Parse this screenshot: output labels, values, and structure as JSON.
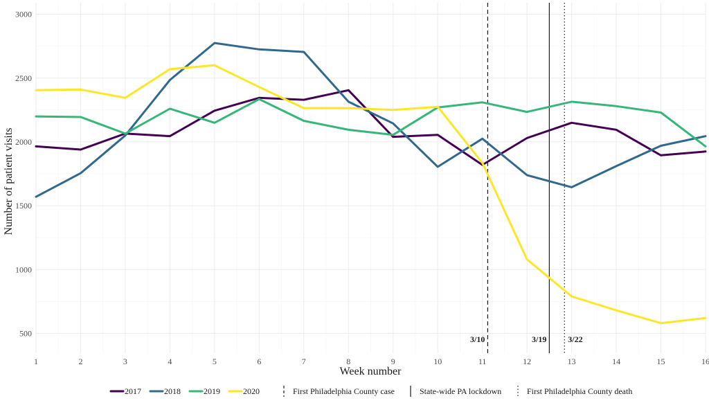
{
  "chart_data": {
    "type": "line",
    "xlabel": "Week number",
    "ylabel": "Number of patient visits",
    "xlim": [
      1,
      16
    ],
    "ylim": [
      345,
      3090
    ],
    "x_ticks": [
      1,
      2,
      3,
      4,
      5,
      6,
      7,
      8,
      9,
      10,
      11,
      12,
      13,
      14,
      15,
      16
    ],
    "y_ticks": [
      500,
      1000,
      1500,
      2000,
      2500,
      3000
    ],
    "grid": true,
    "legend_position": "bottom",
    "x": [
      1,
      2,
      3,
      4,
      5,
      6,
      7,
      8,
      9,
      10,
      11,
      12,
      13,
      14,
      15,
      16
    ],
    "series": [
      {
        "name": "2017",
        "color": "#440154",
        "values": [
          1965,
          1940,
          2065,
          2045,
          2245,
          2345,
          2330,
          2405,
          2040,
          2055,
          1820,
          2030,
          2150,
          2095,
          1895,
          1925
        ]
      },
      {
        "name": "2018",
        "color": "#31688e",
        "values": [
          1570,
          1755,
          2050,
          2485,
          2775,
          2725,
          2705,
          2315,
          2145,
          1805,
          2025,
          1740,
          1645,
          1810,
          1970,
          2045
        ]
      },
      {
        "name": "2019",
        "color": "#35b779",
        "values": [
          2200,
          2195,
          2065,
          2260,
          2150,
          2335,
          2165,
          2095,
          2055,
          2270,
          2310,
          2235,
          2315,
          2280,
          2230,
          1965
        ]
      },
      {
        "name": "2020",
        "color": "#fde725",
        "values": [
          2405,
          2410,
          2345,
          2570,
          2600,
          2430,
          2265,
          2265,
          2250,
          2275,
          1835,
          1080,
          790,
          680,
          580,
          620
        ]
      }
    ],
    "event_lines": [
      {
        "x": 11.12,
        "style": "dashed",
        "label": "3/10",
        "legend": "First Philadelphia County case"
      },
      {
        "x": 12.5,
        "style": "solid",
        "label": "3/19",
        "legend": "State-wide PA lockdown"
      },
      {
        "x": 12.84,
        "style": "dotted",
        "label": "3/22",
        "legend": "First Philadelphia County death"
      }
    ]
  }
}
